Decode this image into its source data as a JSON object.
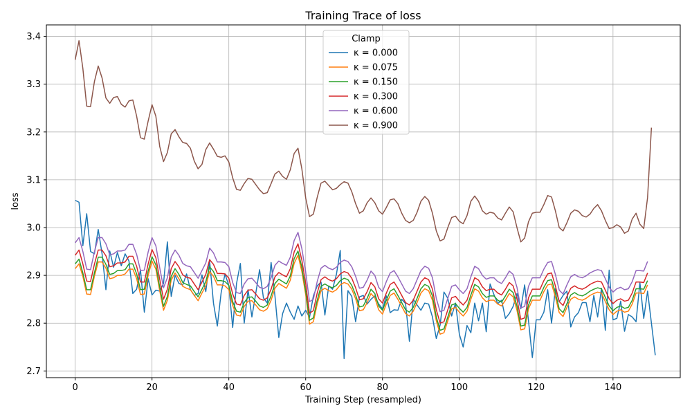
{
  "chart_data": {
    "type": "line",
    "title": "Training Trace of loss",
    "xlabel": "Training Step (resampled)",
    "ylabel": "loss",
    "xlim": [
      -7.5,
      157.5
    ],
    "ylim": [
      2.686,
      3.424
    ],
    "xticks": [
      0,
      20,
      40,
      60,
      80,
      100,
      120,
      140
    ],
    "xtick_labels": [
      "0",
      "20",
      "40",
      "60",
      "80",
      "100",
      "120",
      "140"
    ],
    "yticks": [
      2.7,
      2.8,
      2.9,
      3.0,
      3.1,
      3.2,
      3.3,
      3.4
    ],
    "ytick_labels": [
      "2.7",
      "2.8",
      "2.9",
      "3.0",
      "3.1",
      "3.2",
      "3.3",
      "3.4"
    ],
    "grid": true,
    "legend": {
      "title": "Clamp",
      "position": "top-center"
    },
    "x_start": 0,
    "x_step": 1,
    "series": [
      {
        "name": "κ = 0.000",
        "color": "#1f77b4",
        "values": [
          3.057,
          3.053,
          2.962,
          3.029,
          2.95,
          2.945,
          2.996,
          2.945,
          2.87,
          2.951,
          2.917,
          2.948,
          2.92,
          2.945,
          2.93,
          2.862,
          2.871,
          2.912,
          2.823,
          2.893,
          2.859,
          2.869,
          2.867,
          2.883,
          2.97,
          2.856,
          2.9,
          2.883,
          2.88,
          2.903,
          2.87,
          2.858,
          2.862,
          2.901,
          2.866,
          2.93,
          2.842,
          2.794,
          2.864,
          2.903,
          2.878,
          2.791,
          2.883,
          2.925,
          2.8,
          2.87,
          2.813,
          2.862,
          2.912,
          2.853,
          2.842,
          2.927,
          2.857,
          2.77,
          2.82,
          2.842,
          2.823,
          2.808,
          2.836,
          2.815,
          2.827,
          2.812,
          2.857,
          2.878,
          2.886,
          2.817,
          2.878,
          2.871,
          2.902,
          2.952,
          2.726,
          2.868,
          2.856,
          2.803,
          2.855,
          2.858,
          2.84,
          2.85,
          2.857,
          2.84,
          2.83,
          2.857,
          2.822,
          2.828,
          2.827,
          2.85,
          2.841,
          2.762,
          2.85,
          2.838,
          2.827,
          2.842,
          2.84,
          2.813,
          2.768,
          2.796,
          2.865,
          2.852,
          2.815,
          2.842,
          2.777,
          2.75,
          2.795,
          2.78,
          2.842,
          2.805,
          2.842,
          2.782,
          2.882,
          2.86,
          2.841,
          2.848,
          2.81,
          2.82,
          2.835,
          2.862,
          2.83,
          2.88,
          2.805,
          2.728,
          2.807,
          2.807,
          2.823,
          2.87,
          2.8,
          2.872,
          2.845,
          2.858,
          2.867,
          2.792,
          2.813,
          2.822,
          2.843,
          2.843,
          2.803,
          2.858,
          2.813,
          2.873,
          2.785,
          2.911,
          2.807,
          2.81,
          2.846,
          2.783,
          2.818,
          2.813,
          2.803,
          2.885,
          2.81,
          2.867,
          2.8,
          2.733
        ]
      },
      {
        "name": "κ = 0.075",
        "color": "#ff7f0e",
        "values": [
          2.914,
          2.924,
          2.898,
          2.861,
          2.86,
          2.898,
          2.928,
          2.928,
          2.915,
          2.893,
          2.895,
          2.9,
          2.9,
          2.903,
          2.913,
          2.913,
          2.893,
          2.86,
          2.861,
          2.9,
          2.93,
          2.913,
          2.868,
          2.827,
          2.848,
          2.89,
          2.905,
          2.893,
          2.877,
          2.873,
          2.87,
          2.858,
          2.847,
          2.863,
          2.878,
          2.908,
          2.898,
          2.88,
          2.88,
          2.878,
          2.87,
          2.837,
          2.817,
          2.815,
          2.835,
          2.846,
          2.847,
          2.838,
          2.828,
          2.825,
          2.83,
          2.848,
          2.873,
          2.883,
          2.878,
          2.873,
          2.89,
          2.925,
          2.942,
          2.908,
          2.86,
          2.798,
          2.803,
          2.84,
          2.868,
          2.873,
          2.868,
          2.865,
          2.87,
          2.88,
          2.885,
          2.882,
          2.871,
          2.851,
          2.826,
          2.828,
          2.843,
          2.862,
          2.853,
          2.828,
          2.819,
          2.84,
          2.858,
          2.863,
          2.85,
          2.835,
          2.82,
          2.815,
          2.825,
          2.843,
          2.863,
          2.872,
          2.868,
          2.848,
          2.805,
          2.777,
          2.78,
          2.805,
          2.83,
          2.833,
          2.823,
          2.815,
          2.825,
          2.85,
          2.872,
          2.867,
          2.853,
          2.845,
          2.848,
          2.848,
          2.84,
          2.836,
          2.848,
          2.862,
          2.855,
          2.827,
          2.786,
          2.788,
          2.83,
          2.848,
          2.848,
          2.848,
          2.866,
          2.88,
          2.882,
          2.855,
          2.822,
          2.814,
          2.833,
          2.85,
          2.855,
          2.85,
          2.848,
          2.852,
          2.858,
          2.862,
          2.865,
          2.863,
          2.845,
          2.828,
          2.818,
          2.825,
          2.828,
          2.823,
          2.825,
          2.84,
          2.863,
          2.863,
          2.862,
          2.88
        ]
      },
      {
        "name": "κ = 0.150",
        "color": "#2ca02c",
        "values": [
          2.924,
          2.934,
          2.905,
          2.87,
          2.87,
          2.905,
          2.938,
          2.938,
          2.923,
          2.902,
          2.904,
          2.91,
          2.91,
          2.912,
          2.924,
          2.924,
          2.903,
          2.87,
          2.871,
          2.909,
          2.939,
          2.922,
          2.876,
          2.835,
          2.856,
          2.898,
          2.914,
          2.902,
          2.885,
          2.881,
          2.878,
          2.866,
          2.855,
          2.871,
          2.887,
          2.918,
          2.908,
          2.889,
          2.889,
          2.887,
          2.879,
          2.845,
          2.825,
          2.823,
          2.843,
          2.854,
          2.855,
          2.846,
          2.836,
          2.833,
          2.838,
          2.857,
          2.883,
          2.892,
          2.887,
          2.882,
          2.899,
          2.935,
          2.951,
          2.917,
          2.867,
          2.806,
          2.811,
          2.848,
          2.877,
          2.882,
          2.877,
          2.874,
          2.879,
          2.889,
          2.894,
          2.891,
          2.879,
          2.859,
          2.834,
          2.836,
          2.852,
          2.871,
          2.862,
          2.836,
          2.827,
          2.848,
          2.867,
          2.872,
          2.858,
          2.843,
          2.828,
          2.823,
          2.833,
          2.852,
          2.872,
          2.881,
          2.877,
          2.857,
          2.813,
          2.785,
          2.788,
          2.813,
          2.838,
          2.841,
          2.831,
          2.823,
          2.833,
          2.859,
          2.881,
          2.876,
          2.862,
          2.854,
          2.857,
          2.857,
          2.848,
          2.844,
          2.857,
          2.871,
          2.864,
          2.836,
          2.794,
          2.796,
          2.838,
          2.857,
          2.857,
          2.857,
          2.875,
          2.889,
          2.891,
          2.864,
          2.83,
          2.822,
          2.841,
          2.859,
          2.864,
          2.859,
          2.857,
          2.861,
          2.867,
          2.871,
          2.874,
          2.872,
          2.854,
          2.836,
          2.826,
          2.833,
          2.836,
          2.831,
          2.833,
          2.848,
          2.872,
          2.872,
          2.871,
          2.889
        ]
      },
      {
        "name": "κ = 0.300",
        "color": "#d62728",
        "values": [
          2.942,
          2.953,
          2.924,
          2.888,
          2.887,
          2.923,
          2.953,
          2.953,
          2.941,
          2.918,
          2.92,
          2.926,
          2.926,
          2.928,
          2.94,
          2.94,
          2.919,
          2.886,
          2.886,
          2.924,
          2.954,
          2.937,
          2.892,
          2.85,
          2.871,
          2.914,
          2.929,
          2.918,
          2.901,
          2.896,
          2.894,
          2.882,
          2.87,
          2.886,
          2.902,
          2.933,
          2.923,
          2.904,
          2.904,
          2.903,
          2.894,
          2.861,
          2.84,
          2.838,
          2.858,
          2.869,
          2.87,
          2.861,
          2.851,
          2.848,
          2.853,
          2.871,
          2.897,
          2.906,
          2.901,
          2.897,
          2.914,
          2.949,
          2.966,
          2.932,
          2.883,
          2.821,
          2.826,
          2.863,
          2.891,
          2.897,
          2.891,
          2.888,
          2.893,
          2.903,
          2.908,
          2.905,
          2.894,
          2.874,
          2.849,
          2.851,
          2.866,
          2.885,
          2.876,
          2.851,
          2.842,
          2.863,
          2.881,
          2.886,
          2.873,
          2.858,
          2.843,
          2.838,
          2.848,
          2.867,
          2.886,
          2.895,
          2.891,
          2.871,
          2.828,
          2.8,
          2.803,
          2.828,
          2.853,
          2.856,
          2.846,
          2.838,
          2.848,
          2.873,
          2.895,
          2.89,
          2.876,
          2.868,
          2.871,
          2.871,
          2.863,
          2.859,
          2.871,
          2.885,
          2.878,
          2.851,
          2.808,
          2.811,
          2.853,
          2.871,
          2.871,
          2.871,
          2.889,
          2.903,
          2.905,
          2.878,
          2.845,
          2.837,
          2.856,
          2.873,
          2.878,
          2.873,
          2.871,
          2.875,
          2.881,
          2.885,
          2.888,
          2.886,
          2.869,
          2.851,
          2.841,
          2.848,
          2.851,
          2.846,
          2.848,
          2.863,
          2.886,
          2.886,
          2.885,
          2.905
        ]
      },
      {
        "name": "κ = 0.600",
        "color": "#9467bd",
        "values": [
          2.968,
          2.979,
          2.95,
          2.913,
          2.912,
          2.949,
          2.979,
          2.979,
          2.966,
          2.943,
          2.945,
          2.951,
          2.951,
          2.953,
          2.965,
          2.965,
          2.944,
          2.91,
          2.911,
          2.949,
          2.979,
          2.962,
          2.916,
          2.874,
          2.895,
          2.938,
          2.953,
          2.942,
          2.925,
          2.92,
          2.918,
          2.906,
          2.894,
          2.91,
          2.926,
          2.957,
          2.947,
          2.928,
          2.928,
          2.927,
          2.918,
          2.885,
          2.864,
          2.862,
          2.882,
          2.893,
          2.894,
          2.885,
          2.875,
          2.872,
          2.877,
          2.895,
          2.921,
          2.93,
          2.925,
          2.921,
          2.938,
          2.973,
          2.99,
          2.956,
          2.907,
          2.845,
          2.85,
          2.887,
          2.915,
          2.921,
          2.915,
          2.912,
          2.917,
          2.927,
          2.932,
          2.929,
          2.918,
          2.898,
          2.873,
          2.875,
          2.89,
          2.909,
          2.9,
          2.875,
          2.866,
          2.887,
          2.905,
          2.91,
          2.897,
          2.882,
          2.867,
          2.862,
          2.872,
          2.891,
          2.91,
          2.919,
          2.915,
          2.895,
          2.852,
          2.824,
          2.827,
          2.852,
          2.877,
          2.88,
          2.87,
          2.862,
          2.872,
          2.897,
          2.919,
          2.914,
          2.9,
          2.892,
          2.895,
          2.895,
          2.887,
          2.883,
          2.895,
          2.909,
          2.902,
          2.875,
          2.832,
          2.835,
          2.877,
          2.895,
          2.895,
          2.895,
          2.913,
          2.927,
          2.929,
          2.902,
          2.869,
          2.861,
          2.88,
          2.897,
          2.902,
          2.897,
          2.895,
          2.899,
          2.905,
          2.909,
          2.912,
          2.91,
          2.893,
          2.875,
          2.865,
          2.872,
          2.875,
          2.87,
          2.872,
          2.887,
          2.91,
          2.91,
          2.909,
          2.929
        ]
      },
      {
        "name": "κ = 0.900",
        "color": "#8c564b",
        "values": [
          3.351,
          3.391,
          3.333,
          3.254,
          3.253,
          3.305,
          3.338,
          3.313,
          3.271,
          3.26,
          3.272,
          3.274,
          3.258,
          3.252,
          3.265,
          3.267,
          3.233,
          3.188,
          3.185,
          3.223,
          3.257,
          3.233,
          3.17,
          3.138,
          3.157,
          3.196,
          3.205,
          3.19,
          3.178,
          3.176,
          3.166,
          3.139,
          3.123,
          3.132,
          3.163,
          3.177,
          3.164,
          3.149,
          3.147,
          3.15,
          3.137,
          3.104,
          3.08,
          3.078,
          3.092,
          3.103,
          3.101,
          3.09,
          3.079,
          3.071,
          3.073,
          3.092,
          3.112,
          3.118,
          3.107,
          3.101,
          3.121,
          3.155,
          3.166,
          3.123,
          3.062,
          3.023,
          3.028,
          3.063,
          3.093,
          3.097,
          3.088,
          3.079,
          3.082,
          3.09,
          3.096,
          3.093,
          3.075,
          3.05,
          3.03,
          3.035,
          3.052,
          3.062,
          3.052,
          3.035,
          3.028,
          3.042,
          3.058,
          3.06,
          3.05,
          3.03,
          3.015,
          3.01,
          3.015,
          3.032,
          3.055,
          3.065,
          3.057,
          3.03,
          2.993,
          2.972,
          2.976,
          3.0,
          3.021,
          3.024,
          3.013,
          3.008,
          3.025,
          3.055,
          3.066,
          3.055,
          3.035,
          3.028,
          3.032,
          3.03,
          3.02,
          3.016,
          3.03,
          3.043,
          3.033,
          3.0,
          2.97,
          2.978,
          3.012,
          3.03,
          3.032,
          3.032,
          3.048,
          3.067,
          3.064,
          3.035,
          3.0,
          2.993,
          3.01,
          3.03,
          3.037,
          3.034,
          3.025,
          3.022,
          3.028,
          3.04,
          3.048,
          3.035,
          3.015,
          2.998,
          3.0,
          3.006,
          3.001,
          2.988,
          2.993,
          3.018,
          3.03,
          3.007,
          2.998,
          3.063,
          3.209
        ]
      }
    ]
  }
}
